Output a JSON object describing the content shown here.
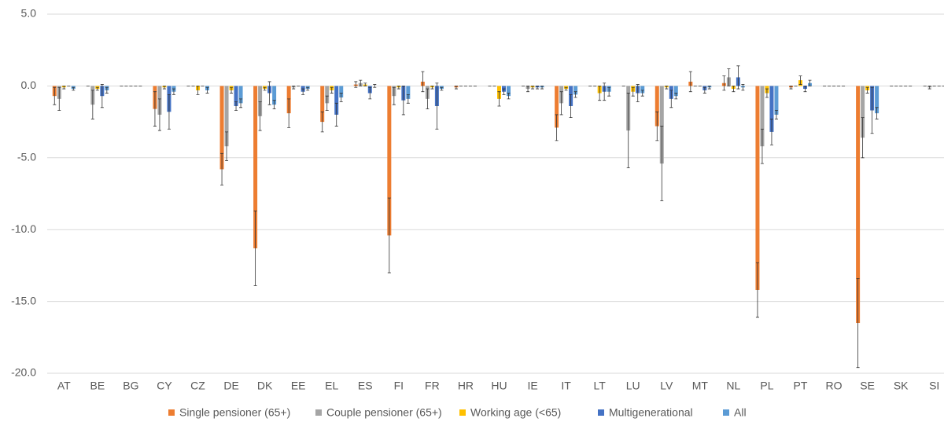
{
  "chart_data": {
    "type": "bar",
    "categories": [
      "AT",
      "BE",
      "BG",
      "CY",
      "CZ",
      "DE",
      "DK",
      "EE",
      "EL",
      "ES",
      "FI",
      "FR",
      "HR",
      "HU",
      "IE",
      "IT",
      "LT",
      "LU",
      "LV",
      "MT",
      "NL",
      "PL",
      "PT",
      "RO",
      "SE",
      "SK",
      "SI"
    ],
    "series": [
      {
        "name": "Single pensioner (65+)",
        "color": "#ed7d31",
        "values": [
          -0.7,
          0,
          0,
          -1.6,
          0,
          -5.8,
          -11.3,
          -1.9,
          -2.5,
          0.1,
          -10.4,
          0.3,
          -0.1,
          0,
          0,
          -2.9,
          0,
          0,
          -2.8,
          0.3,
          0.2,
          -14.2,
          -0.1,
          0,
          -16.5,
          0,
          0
        ],
        "errors": [
          0.6,
          0,
          0,
          1.2,
          0,
          1.1,
          2.6,
          1.0,
          0.7,
          0.2,
          2.6,
          0.7,
          0.1,
          0,
          0,
          0.9,
          0,
          0,
          1.0,
          0.7,
          0.5,
          1.9,
          0.1,
          0,
          3.1,
          0,
          0
        ]
      },
      {
        "name": "Couple pensioner (65+)",
        "color": "#a5a5a5",
        "values": [
          -0.9,
          -1.3,
          0,
          -2.0,
          0,
          -4.2,
          -2.1,
          -0.1,
          -1.2,
          0.2,
          -0.7,
          -0.9,
          0,
          0,
          -0.2,
          -1.2,
          0,
          -3.1,
          -5.4,
          0,
          0.6,
          -4.2,
          0,
          0,
          -3.6,
          0,
          -0.1
        ],
        "errors": [
          0.8,
          1.0,
          0,
          1.1,
          0,
          1.0,
          1.0,
          0.1,
          0.5,
          0.2,
          0.6,
          0.7,
          0,
          0,
          0.2,
          0.8,
          0,
          2.6,
          2.6,
          0,
          0.6,
          1.2,
          0,
          0,
          1.4,
          0,
          0.1
        ]
      },
      {
        "name": "Working age (<65)",
        "color": "#ffc000",
        "values": [
          -0.1,
          -0.2,
          0,
          -0.1,
          -0.3,
          -0.3,
          -0.2,
          0,
          -0.3,
          0.1,
          -0.1,
          -0.1,
          0,
          -0.9,
          -0.1,
          -0.2,
          -0.5,
          -0.4,
          -0.1,
          0,
          -0.2,
          -0.5,
          0.4,
          0,
          -0.3,
          0,
          0
        ],
        "errors": [
          0.1,
          0.1,
          0,
          0.1,
          0.3,
          0.2,
          0.1,
          0,
          0.2,
          0.1,
          0.1,
          0.1,
          0,
          0.5,
          0.1,
          0.1,
          0.5,
          0.3,
          0.1,
          0,
          0.2,
          0.3,
          0.3,
          0,
          0.2,
          0,
          0
        ]
      },
      {
        "name": "Multigenerational",
        "color": "#4472c4",
        "values": [
          0,
          -0.7,
          0,
          -1.8,
          0,
          -1.4,
          -0.5,
          -0.4,
          -2.0,
          -0.5,
          -1.0,
          -1.4,
          0,
          -0.4,
          -0.1,
          -1.4,
          -0.4,
          -0.5,
          -0.9,
          -0.3,
          0.6,
          -3.2,
          -0.2,
          0,
          -1.7,
          0,
          0
        ],
        "errors": [
          0,
          0.8,
          0,
          1.2,
          0,
          0.3,
          0.8,
          0.2,
          0.8,
          0.4,
          1.0,
          1.6,
          0,
          0.2,
          0.1,
          0.8,
          0.6,
          0.6,
          0.6,
          0.2,
          0.8,
          0.9,
          0.2,
          0,
          1.6,
          0,
          0
        ]
      },
      {
        "name": "All",
        "color": "#5b9bd5",
        "values": [
          -0.2,
          -0.3,
          0,
          -0.4,
          -0.3,
          -1.2,
          -1.3,
          -0.2,
          -0.8,
          0,
          -0.9,
          -0.2,
          0,
          -0.7,
          -0.1,
          -0.6,
          -0.4,
          -0.5,
          -0.7,
          -0.1,
          -0.1,
          -2.0,
          0.2,
          0,
          -1.9,
          0,
          0
        ],
        "errors": [
          0.1,
          0.2,
          0,
          0.2,
          0.2,
          0.3,
          0.3,
          0.1,
          0.3,
          0.1,
          0.3,
          0.1,
          0,
          0.2,
          0.1,
          0.2,
          0.3,
          0.2,
          0.2,
          0.1,
          0.2,
          0.3,
          0.2,
          0,
          0.4,
          0,
          0
        ]
      }
    ],
    "ylim": [
      -20,
      5
    ],
    "yticks": [
      {
        "value": -20,
        "label": "-20.0"
      },
      {
        "value": -15,
        "label": "-15.0"
      },
      {
        "value": -10,
        "label": "-10.0"
      },
      {
        "value": -5,
        "label": "-5.0"
      },
      {
        "value": 0,
        "label": "0.0"
      },
      {
        "value": 5,
        "label": "5.0"
      }
    ],
    "grid": true,
    "legend": "bottom"
  }
}
